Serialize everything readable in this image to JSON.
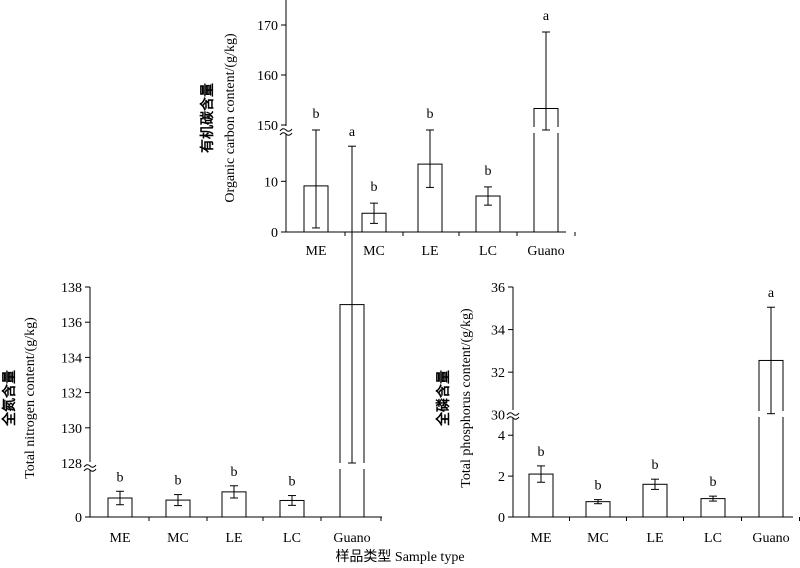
{
  "chart_data": [
    {
      "type": "bar",
      "ylabel_cn": "有机碳含量",
      "ylabel_en": "Organic carbon content/(g/kg)",
      "categories": [
        "ME",
        "MC",
        "LE",
        "LC",
        "Guano"
      ],
      "values": [
        9.1,
        3.7,
        13.4,
        7.1,
        153.3
      ],
      "errors": [
        8.3,
        2.0,
        4.6,
        1.8,
        15.3
      ],
      "significance": [
        "b",
        "b",
        "b",
        "b",
        "a"
      ],
      "axis_break": {
        "lower": [
          0,
          15
        ],
        "upper": [
          148,
          175
        ]
      },
      "lower_ticks": [
        0,
        10
      ],
      "upper_ticks": [
        150,
        160,
        170
      ],
      "tick_labels": [
        "0",
        "10",
        "150",
        "160",
        "170"
      ]
    },
    {
      "type": "bar",
      "ylabel_cn": "全氮含量",
      "ylabel_en": "Total nitrogen content/(g/kg)",
      "categories": [
        "ME",
        "MC",
        "LE",
        "LC",
        "Guano"
      ],
      "values": [
        1.55,
        1.38,
        2.05,
        1.35,
        137.0
      ],
      "errors": [
        0.55,
        0.45,
        0.5,
        0.4,
        9.0
      ],
      "significance": [
        "b",
        "b",
        "b",
        "b",
        "a"
      ],
      "axis_break": {
        "lower": [
          0,
          4
        ],
        "upper": [
          128,
          138
        ]
      },
      "lower_ticks": [
        0
      ],
      "upper_ticks": [
        128,
        130,
        132,
        134,
        136,
        138
      ],
      "tick_labels": [
        "0",
        "128",
        "130",
        "132",
        "134",
        "136",
        "138"
      ]
    },
    {
      "type": "bar",
      "ylabel_cn": "全磷含量",
      "ylabel_en": "Total phosphorus content/(g/kg)",
      "categories": [
        "ME",
        "MC",
        "LE",
        "LC",
        "Guano"
      ],
      "values": [
        2.1,
        0.75,
        1.6,
        0.9,
        32.55
      ],
      "errors": [
        0.4,
        0.1,
        0.25,
        0.12,
        2.5
      ],
      "significance": [
        "b",
        "b",
        "b",
        "b",
        "a"
      ],
      "axis_break": {
        "lower": [
          0,
          4.5
        ],
        "upper": [
          29.8,
          36
        ]
      },
      "lower_ticks": [
        0,
        2,
        4
      ],
      "upper_ticks": [
        30,
        32,
        34,
        36
      ],
      "tick_labels": [
        "0",
        "2",
        "4",
        "30",
        "32",
        "34",
        "36"
      ]
    }
  ],
  "xlabel": "样品类型 Sample type"
}
